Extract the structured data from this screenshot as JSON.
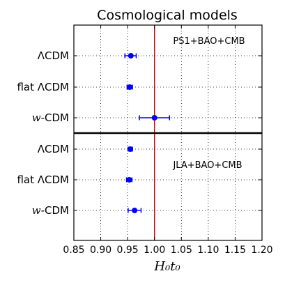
{
  "chart_data": {
    "type": "scatter",
    "title": "Cosmological models",
    "xlabel": "H₀t₀",
    "xlim": [
      0.85,
      1.2
    ],
    "x_ticks": [
      "0.85",
      "0.90",
      "0.95",
      "1.00",
      "1.05",
      "1.10",
      "1.15",
      "1.20"
    ],
    "x_tick_values": [
      0.85,
      0.9,
      0.95,
      1.0,
      1.05,
      1.1,
      1.15,
      1.2
    ],
    "reference_line": {
      "x": 1.0,
      "color": "#cc0000"
    },
    "marker_color": "#0000ff",
    "grid": "dotted",
    "panels": [
      {
        "annotation": "PS1+BAO+CMB",
        "points": [
          {
            "label": "ΛCDM",
            "x": 0.956,
            "err_low": 0.011,
            "err_high": 0.01
          },
          {
            "label": "flat ΛCDM",
            "x": 0.954,
            "err_low": 0.005,
            "err_high": 0.005
          },
          {
            "label": "w-CDM",
            "x": 1.0,
            "err_low": 0.028,
            "err_high": 0.028
          }
        ]
      },
      {
        "annotation": "JLA+BAO+CMB",
        "points": [
          {
            "label": "ΛCDM",
            "x": 0.955,
            "err_low": 0.004,
            "err_high": 0.004
          },
          {
            "label": "flat ΛCDM",
            "x": 0.953,
            "err_low": 0.005,
            "err_high": 0.005
          },
          {
            "label": "w-CDM",
            "x": 0.963,
            "err_low": 0.012,
            "err_high": 0.012
          }
        ]
      }
    ]
  }
}
